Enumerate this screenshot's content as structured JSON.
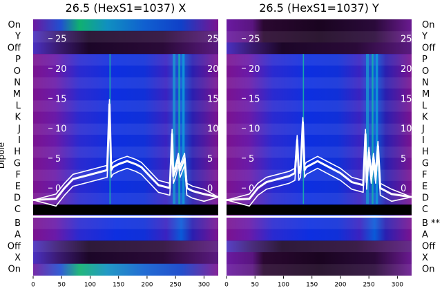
{
  "chart_data": {
    "type": "heatmap",
    "ylabel": "Dipole",
    "x_ticks": [
      "0",
      "50",
      "100",
      "150",
      "200",
      "250",
      "300"
    ],
    "xlim": [
      0,
      325
    ],
    "overlay_ylim": [
      -3,
      27
    ],
    "overlay_yticks": [
      "0",
      "5",
      "10",
      "15",
      "20",
      "25"
    ],
    "colors": {
      "magenta": "#8c1499",
      "blue": "#0a2ad9",
      "teal": "#18b8a8",
      "dark": "#1a0420",
      "trace": "#ffffff"
    },
    "panels": [
      {
        "title": "26.5 (HexS1=1037) X",
        "row_labels": [
          "On",
          "Y",
          "Off",
          "P",
          "O",
          "N",
          "M",
          "L",
          "K",
          "J",
          "I",
          "H",
          "G",
          "F",
          "E",
          "D",
          "C",
          "B",
          "A",
          "Off",
          "X",
          "On"
        ],
        "trace_x": [
          0,
          40,
          55,
          70,
          90,
          110,
          130,
          134,
          137,
          140,
          150,
          165,
          180,
          190,
          200,
          220,
          240,
          244,
          246,
          250,
          255,
          258,
          262,
          266,
          270,
          280,
          300,
          325
        ],
        "trace_y": [
          -2,
          -1.8,
          0,
          1.5,
          2,
          2.5,
          3,
          14,
          3,
          3.5,
          4,
          4.5,
          4,
          3.5,
          2.5,
          0.5,
          0,
          9,
          2,
          3,
          5,
          3,
          4,
          5,
          0,
          -0.5,
          -1,
          -1.5
        ]
      },
      {
        "title": "26.5 (HexS1=1037) Y",
        "row_labels": [
          "On",
          "Y",
          "Off",
          "P",
          "O",
          "N",
          "M",
          "L",
          "K",
          "J",
          "I",
          "H",
          "G",
          "F",
          "E",
          "D",
          "C",
          "B **",
          "A",
          "Off",
          "X",
          "On"
        ],
        "trace_x": [
          0,
          40,
          55,
          70,
          90,
          110,
          120,
          124,
          127,
          130,
          134,
          137,
          140,
          160,
          180,
          200,
          220,
          240,
          244,
          246,
          250,
          254,
          258,
          262,
          266,
          270,
          290,
          325
        ],
        "trace_y": [
          -2,
          -1.8,
          0,
          1,
          1.5,
          2,
          2.5,
          8,
          2.5,
          3,
          11,
          3,
          3.5,
          4.5,
          3.5,
          2.5,
          1,
          0.5,
          9,
          1,
          6,
          2,
          5,
          2,
          7,
          0,
          -1,
          -1.5
        ]
      }
    ]
  }
}
